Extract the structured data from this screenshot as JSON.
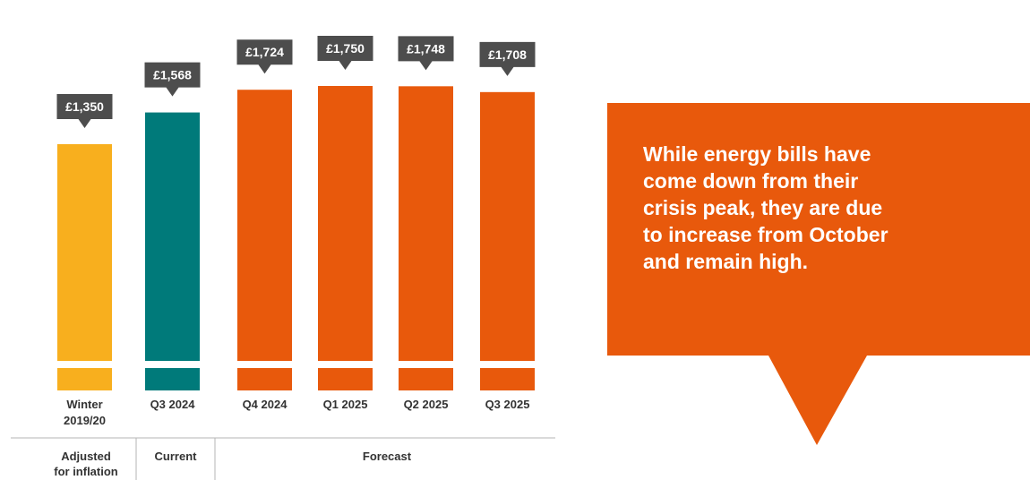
{
  "chart_data": {
    "type": "bar",
    "categories": [
      "Winter 2019/20",
      "Q3 2024",
      "Q4 2024",
      "Q1 2025",
      "Q2 2025",
      "Q3 2025"
    ],
    "category_lines": [
      [
        "Winter",
        "2019/20"
      ],
      [
        "Q3 2024"
      ],
      [
        "Q4 2024"
      ],
      [
        "Q1 2025"
      ],
      [
        "Q2 2025"
      ],
      [
        "Q3 2025"
      ]
    ],
    "values": [
      1350,
      1568,
      1724,
      1750,
      1748,
      1708
    ],
    "value_labels": [
      "£1,350",
      "£1,568",
      "£1,724",
      "£1,750",
      "£1,748",
      "£1,708"
    ],
    "groups": [
      {
        "lines": [
          "Adjusted",
          "for inflation"
        ],
        "categories": [
          "Winter 2019/20"
        ]
      },
      {
        "lines": [
          "Current"
        ],
        "categories": [
          "Q3 2024"
        ]
      },
      {
        "lines": [
          "Forecast"
        ],
        "categories": [
          "Q4 2024",
          "Q1 2025",
          "Q2 2025",
          "Q3 2025"
        ]
      }
    ],
    "ylim": [
      0,
      1750
    ],
    "axis_break": true,
    "grid": false,
    "legend": "none",
    "colors": {
      "Winter 2019/20": "#F8AF1E",
      "Q3 2024": "#007A7A",
      "Q4 2024": "#E8590C",
      "Q1 2025": "#E8590C",
      "Q2 2025": "#E8590C",
      "Q3 2025": "#E8590C"
    },
    "label_box_color": "#4D4D4D"
  },
  "callout": {
    "lines": [
      "While energy bills have",
      "come down from their",
      "crisis peak, they are due",
      "to increase from October",
      "and remain high."
    ],
    "color": "#E8590C"
  }
}
